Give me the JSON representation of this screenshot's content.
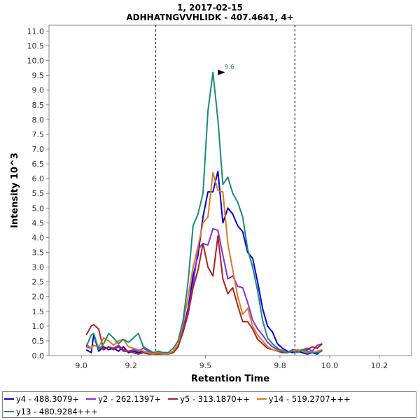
{
  "chart_data": {
    "type": "line",
    "title": "1, 2017-02-15",
    "subtitle": "ADHHATNGVVHLIDK - 407.4641, 4+",
    "xlabel": "Retention Time",
    "ylabel": "Intensity 10^3",
    "xlim": [
      8.87,
      10.33
    ],
    "ylim": [
      0,
      11.2
    ],
    "x_ticks": [
      9.0,
      9.2,
      9.5,
      9.8,
      10.0,
      10.2
    ],
    "x_tick_labels": [
      "9.0",
      "9.2",
      "9.5",
      "9.8",
      "10.0",
      "10.2"
    ],
    "y_ticks": [
      0,
      0.5,
      1,
      1.5,
      2,
      2.5,
      3,
      3.5,
      4,
      4.5,
      5,
      5.5,
      6,
      6.5,
      7,
      7.5,
      8,
      8.5,
      9,
      9.5,
      10,
      10.5,
      11
    ],
    "y_tick_labels": [
      "0.0",
      "0.5",
      "1.0",
      "1.5",
      "2.0",
      "2.5",
      "3.0",
      "3.5",
      "4.0",
      "4.5",
      "5.0",
      "5.5",
      "6.0",
      "6.5",
      "7.0",
      "7.5",
      "8.0",
      "8.5",
      "9.0",
      "9.5",
      "10.0",
      "10.5",
      "11.0"
    ],
    "vlines": [
      9.3,
      9.86
    ],
    "peak_annotation": {
      "label": "9.6",
      "x": 9.587,
      "y": 9.6
    },
    "series": [
      {
        "name": "y4 - 488.3079+",
        "color": "#0000dd",
        "x": [
          9.02,
          9.04,
          9.05,
          9.07,
          9.09,
          9.11,
          9.13,
          9.15,
          9.17,
          9.19,
          9.21,
          9.23,
          9.25,
          9.27,
          9.29,
          9.31,
          9.33,
          9.35,
          9.37,
          9.39,
          9.41,
          9.43,
          9.45,
          9.47,
          9.49,
          9.51,
          9.53,
          9.55,
          9.57,
          9.59,
          9.61,
          9.63,
          9.65,
          9.67,
          9.69,
          9.71,
          9.73,
          9.75,
          9.77,
          9.79,
          9.81,
          9.83,
          9.85,
          9.87,
          9.89,
          9.91,
          9.93,
          9.95,
          9.97
        ],
        "values": [
          0.2,
          0.1,
          0.7,
          0.15,
          0.3,
          0.2,
          0.25,
          0.15,
          0.3,
          0.1,
          0.15,
          0.1,
          0.15,
          0.1,
          0.05,
          0.1,
          0.05,
          0.05,
          0.1,
          0.3,
          0.9,
          1.6,
          2.7,
          3.4,
          4.7,
          5.55,
          5.55,
          6.25,
          4.5,
          5.0,
          4.8,
          4.4,
          4.2,
          3.5,
          3.3,
          2.5,
          1.6,
          1.0,
          0.8,
          0.4,
          0.25,
          0.15,
          0.1,
          0.15,
          0.1,
          0.05,
          0.1,
          0.05,
          0.2
        ]
      },
      {
        "name": "y2 - 262.1397+",
        "color": "#8a2be2",
        "x": [
          9.02,
          9.04,
          9.05,
          9.07,
          9.09,
          9.11,
          9.13,
          9.15,
          9.17,
          9.19,
          9.21,
          9.23,
          9.25,
          9.27,
          9.29,
          9.31,
          9.33,
          9.35,
          9.37,
          9.39,
          9.41,
          9.43,
          9.45,
          9.47,
          9.49,
          9.51,
          9.53,
          9.55,
          9.57,
          9.59,
          9.61,
          9.63,
          9.65,
          9.67,
          9.69,
          9.71,
          9.73,
          9.75,
          9.77,
          9.79,
          9.81,
          9.83,
          9.85,
          9.87,
          9.89,
          9.91,
          9.93,
          9.95,
          9.97
        ],
        "values": [
          0.3,
          0.25,
          0.35,
          0.3,
          0.2,
          0.3,
          0.25,
          0.35,
          0.2,
          0.15,
          0.2,
          0.15,
          0.25,
          0.15,
          0.1,
          0.1,
          0.1,
          0.1,
          0.1,
          0.3,
          0.9,
          1.5,
          2.4,
          3.6,
          3.8,
          3.75,
          4.3,
          4.25,
          3.4,
          2.6,
          2.7,
          2.35,
          2.3,
          1.8,
          1.2,
          0.9,
          0.7,
          0.45,
          0.3,
          0.2,
          0.15,
          0.1,
          0.2,
          0.15,
          0.2,
          0.25,
          0.15,
          0.35,
          0.4
        ]
      },
      {
        "name": "y5 - 313.1870++",
        "color": "#aa2222",
        "x": [
          9.02,
          9.04,
          9.05,
          9.07,
          9.09,
          9.11,
          9.13,
          9.15,
          9.17,
          9.19,
          9.21,
          9.23,
          9.25,
          9.27,
          9.29,
          9.31,
          9.33,
          9.35,
          9.37,
          9.39,
          9.41,
          9.43,
          9.45,
          9.47,
          9.49,
          9.51,
          9.53,
          9.55,
          9.57,
          9.59,
          9.61,
          9.63,
          9.65,
          9.67,
          9.69,
          9.71,
          9.73,
          9.75,
          9.77,
          9.79,
          9.81,
          9.83,
          9.85,
          9.87,
          9.89,
          9.91,
          9.93,
          9.95,
          9.97
        ],
        "values": [
          0.7,
          1.0,
          1.05,
          0.9,
          0.2,
          0.3,
          0.2,
          0.3,
          0.15,
          0.15,
          0.1,
          0.05,
          0.1,
          0.05,
          0.05,
          0.05,
          0.05,
          0.05,
          0.1,
          0.3,
          0.8,
          1.4,
          2.3,
          2.9,
          3.8,
          3.0,
          2.7,
          4.05,
          2.6,
          2.1,
          2.3,
          1.7,
          1.15,
          1.15,
          0.9,
          0.55,
          0.4,
          0.25,
          0.2,
          0.15,
          0.1,
          0.1,
          0.15,
          0.2,
          0.15,
          0.2,
          0.3,
          0.25,
          0.4
        ]
      },
      {
        "name": "y14 - 519.2707+++",
        "color": "#e07b1a",
        "x": [
          9.02,
          9.04,
          9.05,
          9.07,
          9.09,
          9.11,
          9.13,
          9.15,
          9.17,
          9.19,
          9.21,
          9.23,
          9.25,
          9.27,
          9.29,
          9.31,
          9.33,
          9.35,
          9.37,
          9.39,
          9.41,
          9.43,
          9.45,
          9.47,
          9.49,
          9.51,
          9.53,
          9.55,
          9.57,
          9.59,
          9.61,
          9.63,
          9.65,
          9.67,
          9.69,
          9.71,
          9.73,
          9.75,
          9.77,
          9.79,
          9.81,
          9.83,
          9.85,
          9.87,
          9.89,
          9.91,
          9.93,
          9.95,
          9.97
        ],
        "values": [
          0.4,
          0.25,
          0.35,
          0.3,
          0.6,
          0.5,
          0.35,
          0.5,
          0.55,
          0.3,
          0.25,
          0.2,
          0.15,
          0.1,
          0.05,
          0.1,
          0.05,
          0.05,
          0.15,
          0.4,
          1.1,
          2.0,
          3.0,
          3.7,
          4.5,
          4.7,
          6.2,
          5.6,
          5.55,
          3.8,
          2.9,
          2.0,
          1.4,
          1.6,
          1.0,
          0.7,
          0.5,
          0.3,
          0.2,
          0.15,
          0.2,
          0.1,
          0.15,
          0.2,
          0.15,
          0.1,
          0.1,
          0.15,
          0.2
        ]
      },
      {
        "name": "y13 - 480.9284+++",
        "color": "#1a8a7a",
        "x": [
          9.02,
          9.04,
          9.05,
          9.07,
          9.09,
          9.11,
          9.13,
          9.15,
          9.17,
          9.19,
          9.21,
          9.23,
          9.25,
          9.27,
          9.29,
          9.31,
          9.33,
          9.35,
          9.37,
          9.39,
          9.41,
          9.43,
          9.45,
          9.47,
          9.49,
          9.51,
          9.53,
          9.55,
          9.57,
          9.59,
          9.61,
          9.63,
          9.65,
          9.67,
          9.69,
          9.71,
          9.73,
          9.75,
          9.77,
          9.79,
          9.81,
          9.83,
          9.85,
          9.87,
          9.89,
          9.91,
          9.93,
          9.95,
          9.97
        ],
        "values": [
          0.3,
          0.7,
          0.75,
          0.2,
          0.4,
          0.75,
          0.6,
          0.4,
          0.55,
          0.45,
          0.6,
          0.75,
          0.3,
          0.2,
          0.1,
          0.15,
          0.1,
          0.1,
          0.25,
          0.5,
          1.2,
          2.5,
          4.4,
          4.8,
          5.5,
          8.3,
          9.6,
          8.0,
          5.8,
          6.05,
          5.5,
          5.2,
          4.7,
          3.6,
          3.0,
          2.2,
          1.2,
          0.6,
          0.4,
          0.25,
          0.15,
          0.1,
          0.15,
          0.1,
          0.2,
          0.15,
          0.1,
          0.1,
          0.15
        ]
      }
    ]
  }
}
